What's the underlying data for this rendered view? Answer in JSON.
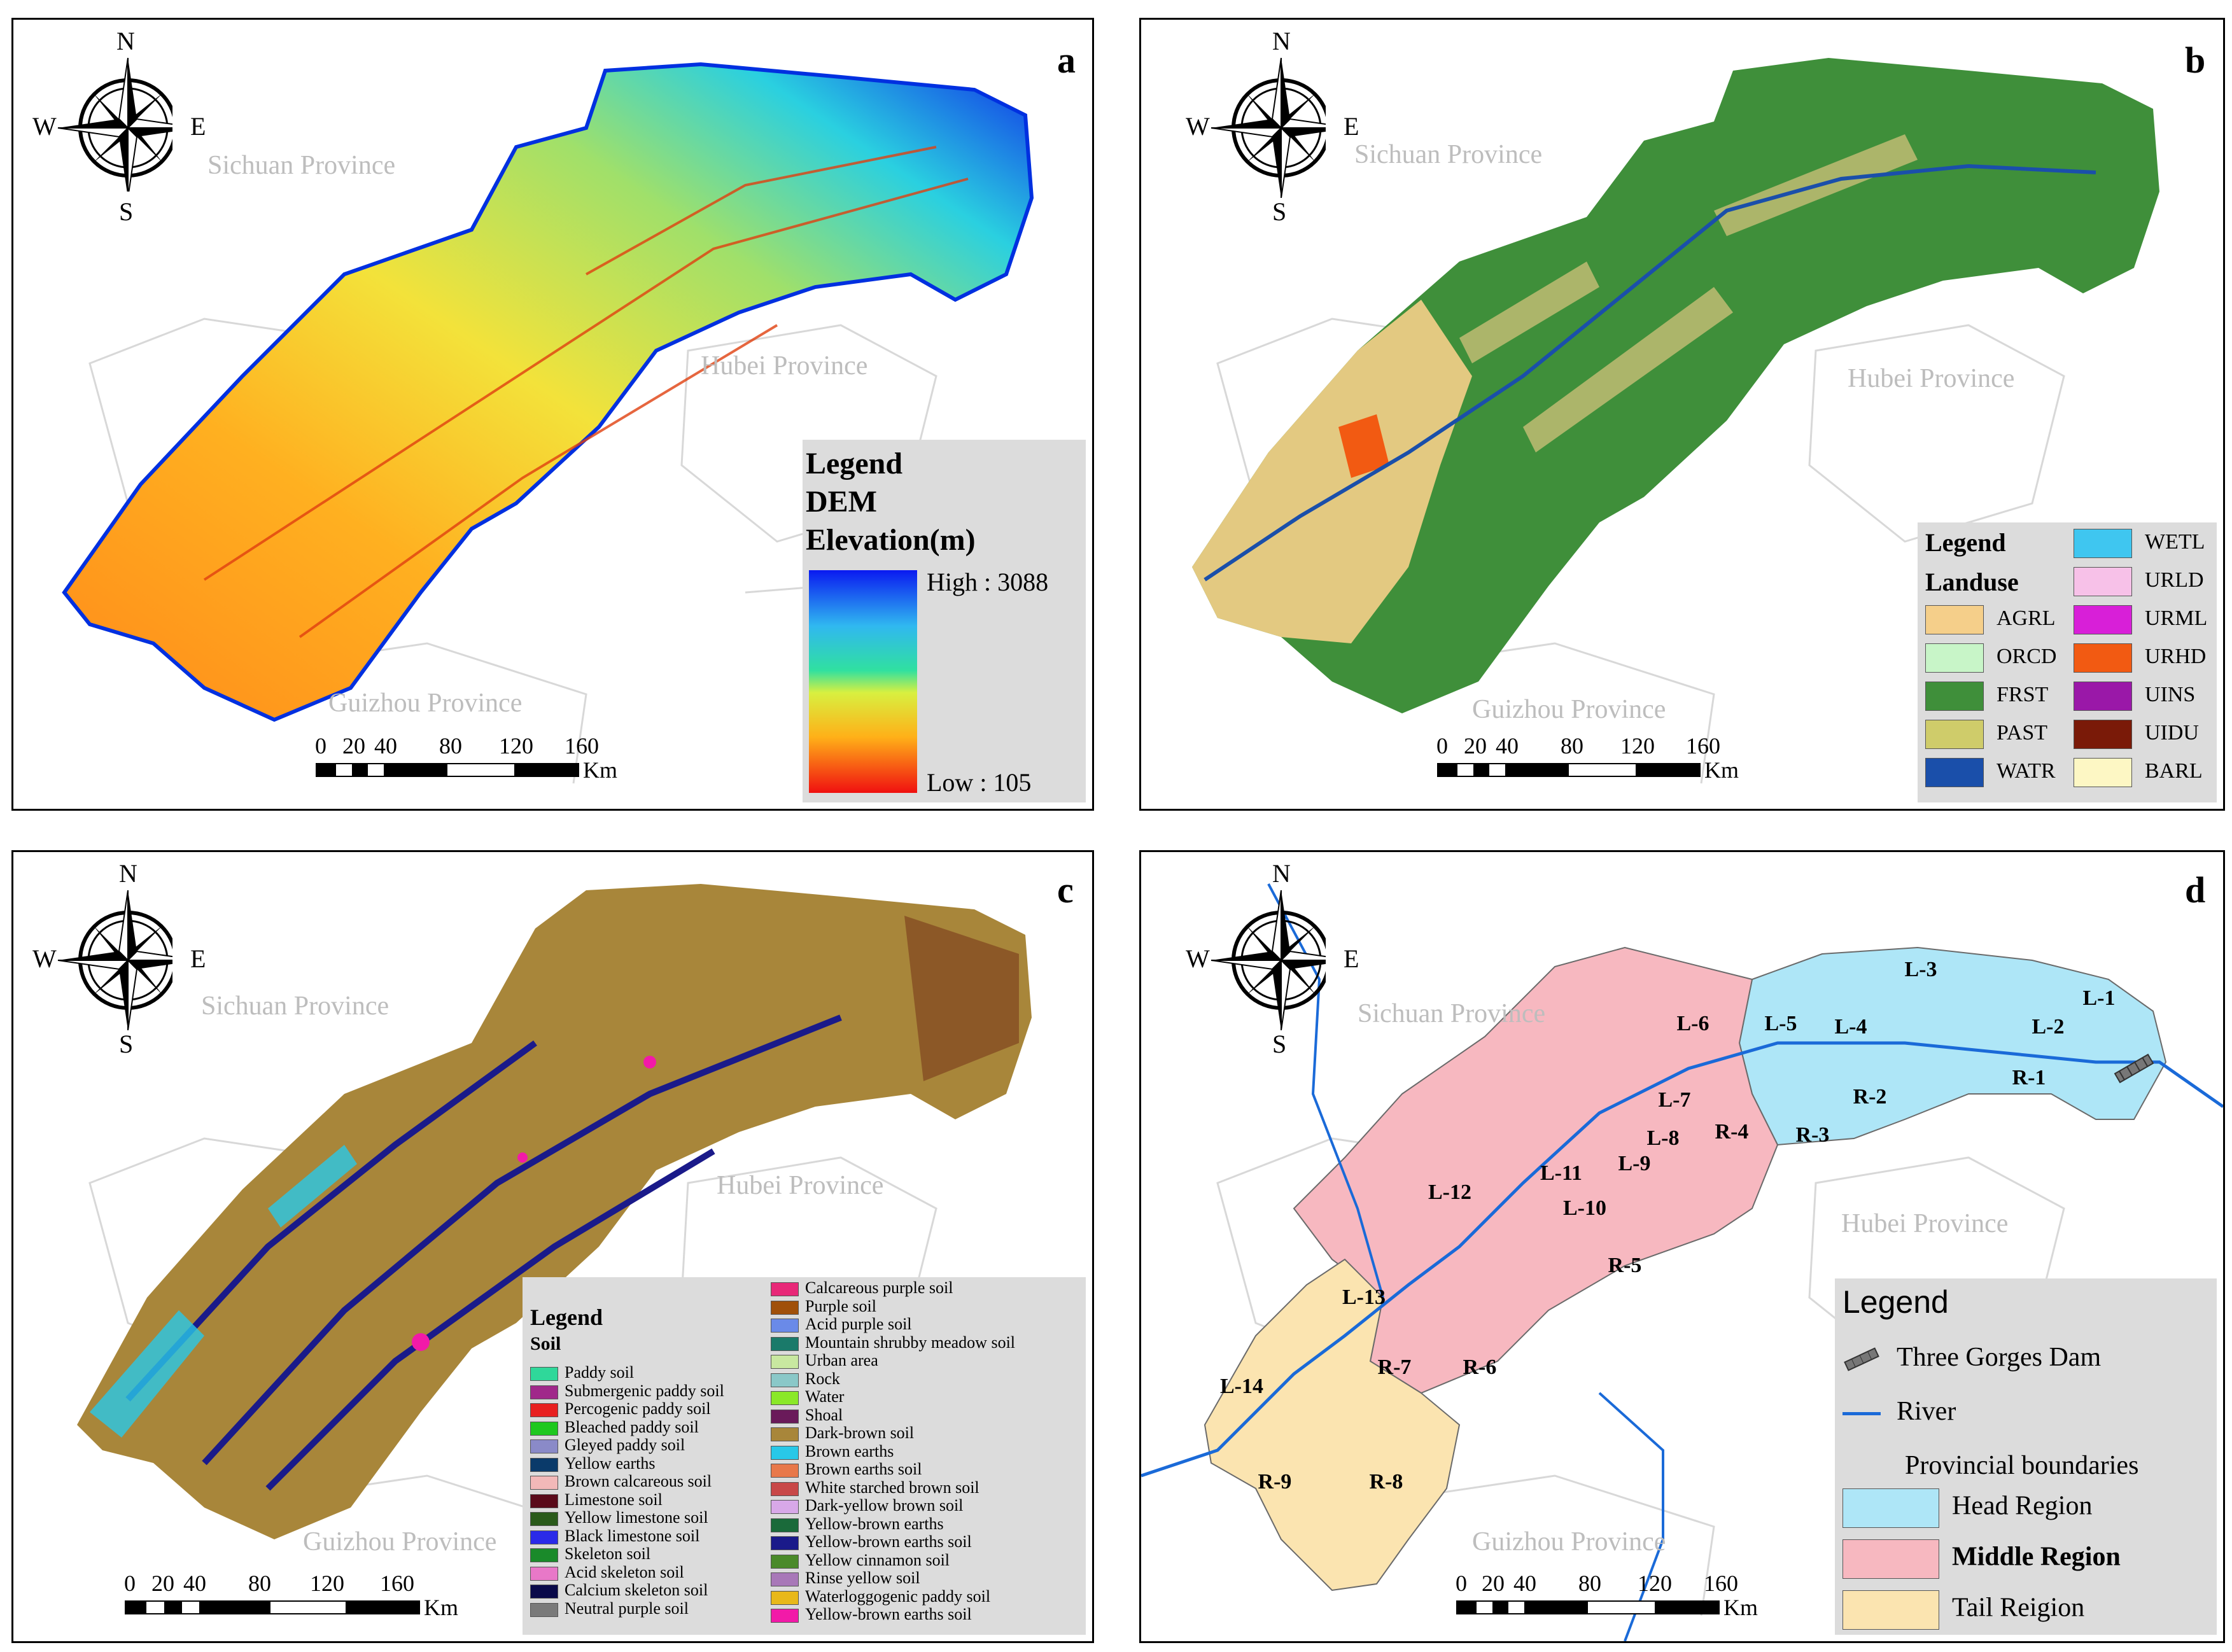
{
  "panel_a": {
    "letter": "a",
    "compass": {
      "n": "N",
      "s": "S",
      "e": "E",
      "w": "W"
    },
    "provinces": [
      "Sichuan Province",
      "Hubei Province",
      "Guizhou Province"
    ],
    "scale": {
      "ticks": [
        "0",
        "20",
        "40",
        "80",
        "120",
        "160"
      ],
      "unit": "Km"
    },
    "legend": {
      "title": "Legend",
      "subtitle1": "DEM",
      "subtitle2": "Elevation(m)",
      "high": "High : 3088",
      "low": "Low : 105"
    }
  },
  "panel_b": {
    "letter": "b",
    "compass": {
      "n": "N",
      "s": "S",
      "e": "E",
      "w": "W"
    },
    "provinces": [
      "Sichuan Province",
      "Hubei Province",
      "Guizhou Province"
    ],
    "scale": {
      "ticks": [
        "0",
        "20",
        "40",
        "80",
        "120",
        "160"
      ],
      "unit": "Km"
    },
    "legend": {
      "title": "Legend",
      "subtitle": "Landuse",
      "left_items": [
        {
          "label": "AGRL",
          "color": "#f5cf8a"
        },
        {
          "label": "ORCD",
          "color": "#c8f5c8"
        },
        {
          "label": "FRST",
          "color": "#3f8f3a"
        },
        {
          "label": "PAST",
          "color": "#cfcc6a"
        },
        {
          "label": "WATR",
          "color": "#1a4faa"
        }
      ],
      "right_items": [
        {
          "label": "WETL",
          "color": "#3fc6f0"
        },
        {
          "label": "URLD",
          "color": "#f7c1e8"
        },
        {
          "label": "URML",
          "color": "#d81fd8"
        },
        {
          "label": "URHD",
          "color": "#f25a12"
        },
        {
          "label": "UINS",
          "color": "#9a18a8"
        },
        {
          "label": "UIDU",
          "color": "#7a1a08"
        },
        {
          "label": "BARL",
          "color": "#fdf7c4"
        }
      ]
    }
  },
  "panel_c": {
    "letter": "c",
    "compass": {
      "n": "N",
      "s": "S",
      "e": "E",
      "w": "W"
    },
    "provinces": [
      "Sichuan Province",
      "Hubei Province",
      "Guizhou Province"
    ],
    "scale": {
      "ticks": [
        "0",
        "20",
        "40",
        "80",
        "120",
        "160"
      ],
      "unit": "Km"
    },
    "legend": {
      "title": "Legend",
      "subtitle": "Soil",
      "left_items": [
        {
          "label": "Paddy soil",
          "color": "#2fd89a"
        },
        {
          "label": "Submergenic paddy soil",
          "color": "#a0288a"
        },
        {
          "label": "Percogenic paddy soil",
          "color": "#e82020"
        },
        {
          "label": "Bleached paddy soil",
          "color": "#1ec81e"
        },
        {
          "label": "Gleyed paddy soil",
          "color": "#8a8ac8"
        },
        {
          "label": "Yellow earths",
          "color": "#0a3a6a"
        },
        {
          "label": "Brown calcareous soil",
          "color": "#f2b8b8"
        },
        {
          "label": "Limestone soil",
          "color": "#5a0a1a"
        },
        {
          "label": "Yellow limestone soil",
          "color": "#2a5a1a"
        },
        {
          "label": "Black limestone soil",
          "color": "#2a2ae8"
        },
        {
          "label": "Skeleton soil",
          "color": "#1a8a2a"
        },
        {
          "label": "Acid skeleton soil",
          "color": "#e878c8"
        },
        {
          "label": "Calcium skeleton soil",
          "color": "#0a0a4a"
        },
        {
          "label": "Neutral purple soil",
          "color": "#7a7a7a"
        }
      ],
      "right_items": [
        {
          "label": "Calcareous purple soil",
          "color": "#e82878"
        },
        {
          "label": "Purple soil",
          "color": "#a0500a"
        },
        {
          "label": "Acid purple soil",
          "color": "#6a8ae8"
        },
        {
          "label": "Mountain shrubby meadow soil",
          "color": "#1a7a6a"
        },
        {
          "label": "Urban area",
          "color": "#c8e8a0"
        },
        {
          "label": "Rock",
          "color": "#8ac8c8"
        },
        {
          "label": "Water",
          "color": "#8ae828"
        },
        {
          "label": "Shoal",
          "color": "#6a1a5a"
        },
        {
          "label": "Dark-brown soil",
          "color": "#a8863a"
        },
        {
          "label": "Brown earths",
          "color": "#28c8e8"
        },
        {
          "label": "Brown earths soil",
          "color": "#e8784a"
        },
        {
          "label": "White starched brown soil",
          "color": "#c84848"
        },
        {
          "label": "Dark-yellow brown soil",
          "color": "#d8a8e8"
        },
        {
          "label": "Yellow-brown earths",
          "color": "#1a6a3a"
        },
        {
          "label": "Yellow-brown earths soil",
          "color": "#1a1a8a"
        },
        {
          "label": "Yellow cinnamon soil",
          "color": "#4a8a2a"
        },
        {
          "label": "Rinse yellow soil",
          "color": "#a878b8"
        },
        {
          "label": "Waterloggogenic paddy soil",
          "color": "#e8b81a"
        },
        {
          "label": "Yellow-brown earths soil",
          "color": "#f21aa8"
        }
      ]
    }
  },
  "panel_d": {
    "letter": "d",
    "compass": {
      "n": "N",
      "s": "S",
      "e": "E",
      "w": "W"
    },
    "provinces": [
      "Sichuan Province",
      "Hubei Province",
      "Guizhou Province"
    ],
    "scale": {
      "ticks": [
        "0",
        "20",
        "40",
        "80",
        "120",
        "160"
      ],
      "unit": "Km"
    },
    "regions": {
      "head": [
        "L-1",
        "L-2",
        "L-3",
        "L-4",
        "L-5",
        "R-1",
        "R-2",
        "R-3"
      ],
      "middle": [
        "L-6",
        "L-7",
        "L-8",
        "L-9",
        "L-10",
        "L-11",
        "L-12",
        "R-4",
        "R-5",
        "R-6"
      ],
      "tail": [
        "L-13",
        "L-14",
        "R-7",
        "R-8",
        "R-9"
      ]
    },
    "legend": {
      "title": "Legend",
      "dam": "Three Gorges Dam",
      "river": "River",
      "prov_boundaries": "Provincial boundaries",
      "head": "Head Region",
      "middle": "Middle Region",
      "tail": "Tail Reigion",
      "colors": {
        "head": "#aee6f7",
        "middle": "#f7b8c0",
        "tail": "#fbe4b0",
        "river": "#1a6ad8"
      }
    }
  }
}
